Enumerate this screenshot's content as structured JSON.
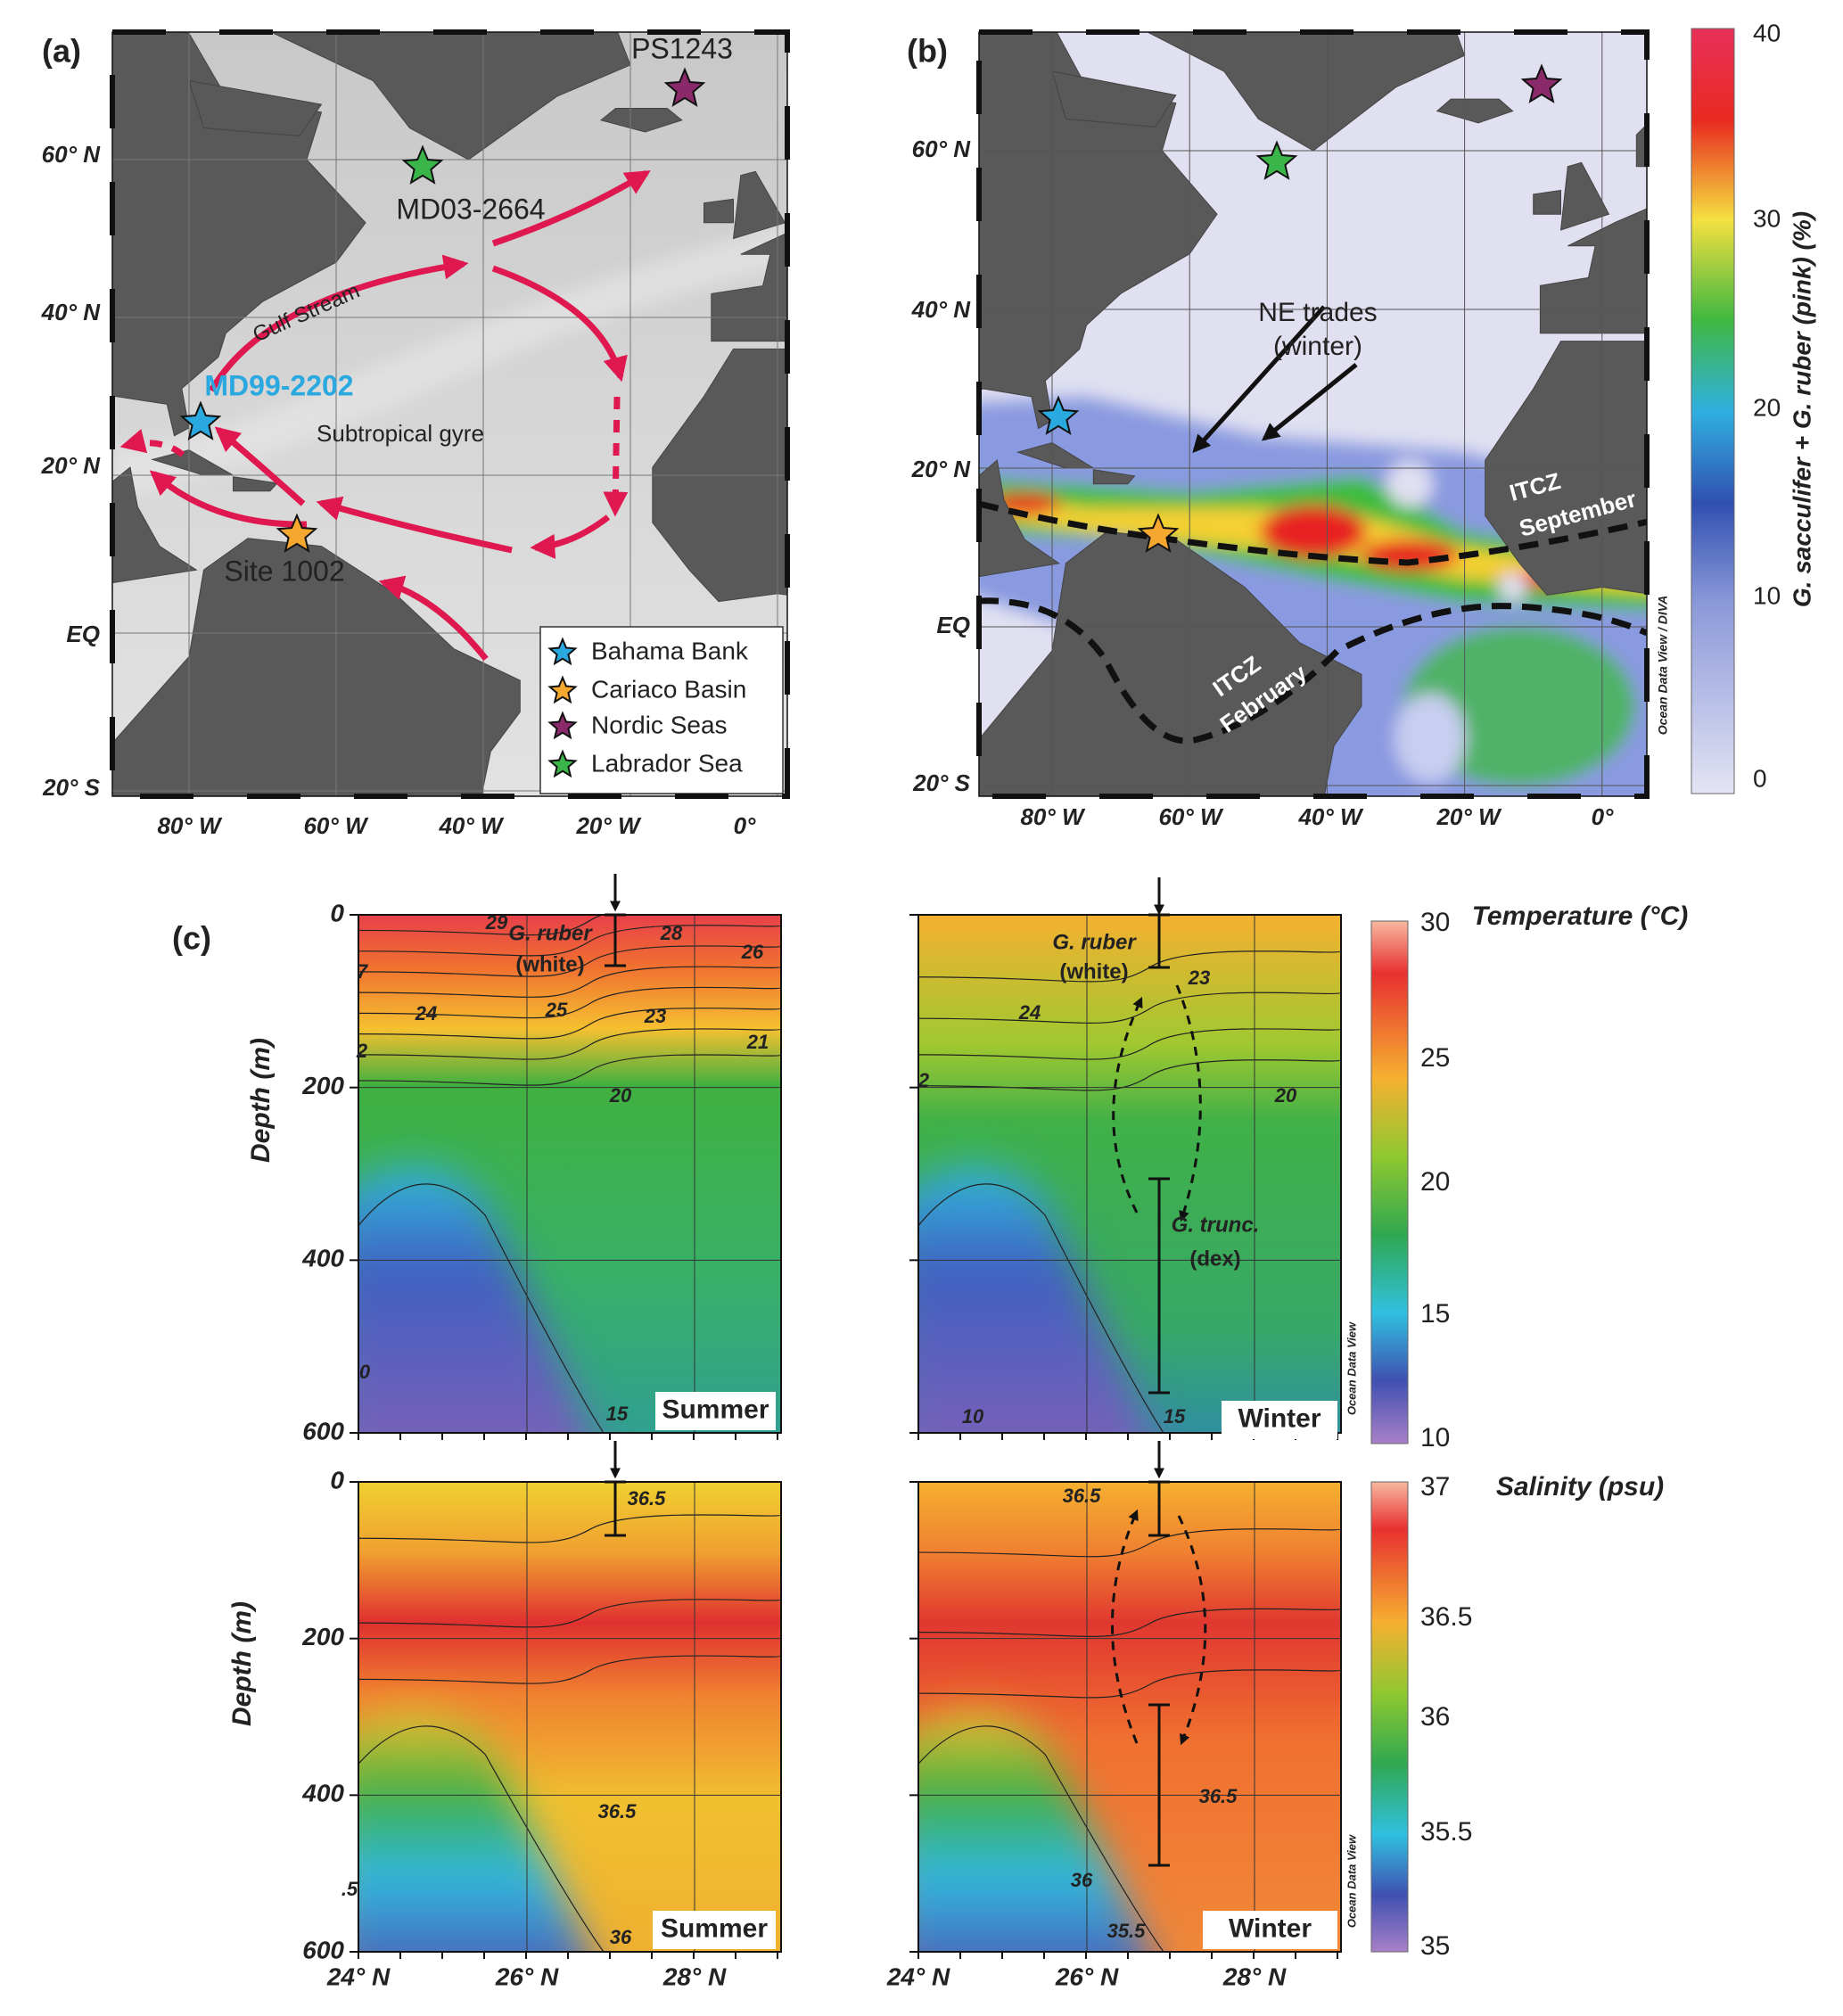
{
  "panel_a": {
    "label": "(a)",
    "lat_labels": [
      "60° N",
      "40° N",
      "20° N",
      "EQ",
      "20° S"
    ],
    "lon_labels": [
      "80° W",
      "60° W",
      "40° W",
      "20° W",
      "0°"
    ],
    "sites": [
      "PS1243",
      "MD03-2664",
      "MD99-2202",
      "Site 1002"
    ],
    "annotations": [
      "Gulf Stream",
      "Subtropical gyre"
    ],
    "legend": [
      "Bahama Bank",
      "Cariaco Basin",
      "Nordic Seas",
      "Labrador Sea"
    ]
  },
  "panel_b": {
    "label": "(b)",
    "lat_labels": [
      "60° N",
      "40° N",
      "20° N",
      "EQ",
      "20° S"
    ],
    "lon_labels": [
      "80° W",
      "60° W",
      "40° W",
      "20° W",
      "0°"
    ],
    "annotations": [
      "NE trades",
      "(winter)",
      "ITCZ",
      "September",
      "ITCZ",
      "February"
    ],
    "credit": "Ocean Data View / DIVA",
    "colorbar": {
      "title": "G. sacculifer + G. ruber (pink) (%)",
      "ticks": [
        "40",
        "30",
        "20",
        "10",
        "0"
      ]
    }
  },
  "panel_c": {
    "label": "(c)",
    "depth_title": "Depth (m)",
    "depth_labels": [
      "0",
      "200",
      "400",
      "600"
    ],
    "lat_labels": [
      "24° N",
      "26° N",
      "28° N"
    ],
    "credit": "Ocean Data View",
    "temperature": {
      "title": "Temperature (°C)",
      "colorbar_ticks": [
        "30",
        "25",
        "20",
        "15",
        "10"
      ],
      "summer": {
        "season": "Summer",
        "contour_labels": [
          "29",
          "28",
          "26",
          "7",
          "24",
          "25",
          "23",
          "2",
          "21",
          "20",
          "0",
          "15"
        ],
        "species": [
          "G. ruber",
          "(white)"
        ]
      },
      "winter": {
        "season": "Winter",
        "contour_labels": [
          "23",
          "24",
          "2",
          "20",
          "10",
          "15"
        ],
        "species": [
          "G. ruber",
          "(white)",
          "G. trunc.",
          "(dex)"
        ]
      }
    },
    "salinity": {
      "title": "Salinity (psu)",
      "colorbar_ticks": [
        "37",
        "36.5",
        "36",
        "35.5",
        "35"
      ],
      "summer": {
        "season": "Summer",
        "contour_labels": [
          "36.5",
          "36.5",
          ".5",
          "36"
        ]
      },
      "winter": {
        "season": "Winter",
        "contour_labels": [
          "36.5",
          "36.5",
          "36",
          "35.5"
        ]
      }
    }
  }
}
